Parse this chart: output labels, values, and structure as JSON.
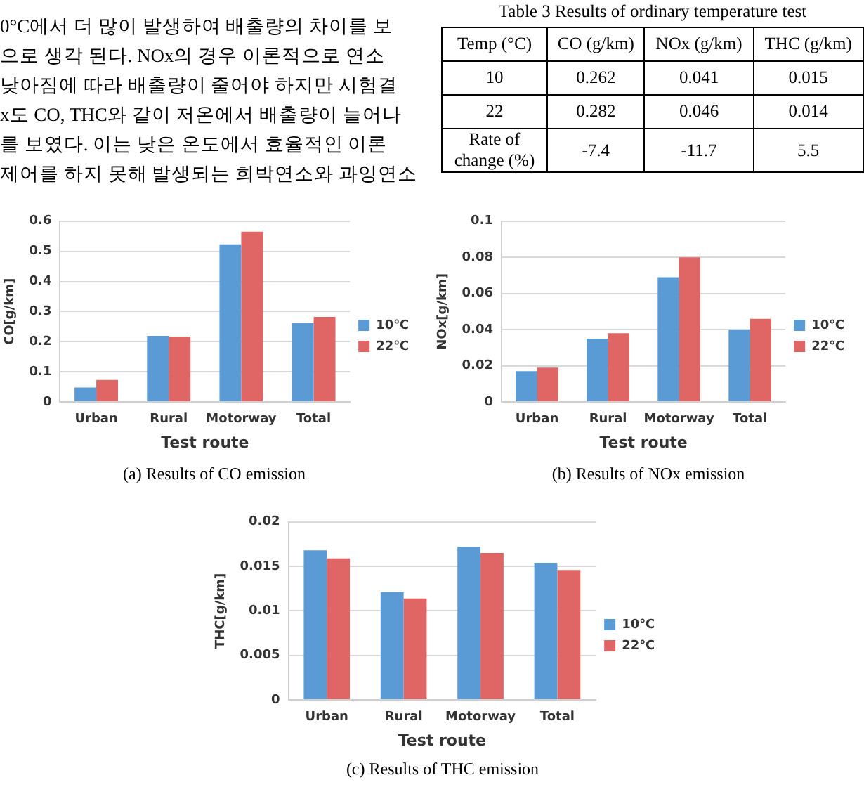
{
  "chart_data": [
    {
      "type": "other",
      "annotations": [
        "0°C에서 더 많이 발생하여 배출량의 차이를 보",
        "으로 생각 된다. NOx의 경우 이론적으로 연소",
        "낮아짐에 따라 배출량이 줄어야 하지만 시험결",
        "x도 CO, THC와 같이 저온에서 배출량이 늘어나",
        "를 보였다. 이는 낮은 온도에서 효율적인 이론",
        "제어를 하지 못해 발생되는 희박연소와 과잉연소"
      ]
    },
    {
      "type": "other",
      "title": "Table 3 Results of ordinary temperature test",
      "categories": [
        "Temp (°C)",
        "CO (g/km)",
        "NOx (g/km)",
        "THC (g/km)"
      ],
      "y_categories": [
        "10",
        "22",
        "Rate of change (%)"
      ],
      "cell_labels": [
        [
          "0.262",
          "0.041",
          "0.015"
        ],
        [
          "0.282",
          "0.046",
          "0.014"
        ],
        [
          "-7.4",
          "-11.7",
          "5.5"
        ]
      ]
    },
    {
      "type": "bar",
      "title": "(a)  Results  of  CO  emission",
      "xlabel": "Test route",
      "ylabel": "CO[g/km]",
      "categories": [
        "Urban",
        "Rural",
        "Motorway",
        "Total"
      ],
      "series": [
        {
          "name": "10℃",
          "color": "#5b9bd5",
          "values": [
            0.048,
            0.219,
            0.523,
            0.262
          ]
        },
        {
          "name": "22℃",
          "color": "#e06666",
          "values": [
            0.073,
            0.217,
            0.565,
            0.282
          ]
        }
      ],
      "ylim": [
        0,
        0.6
      ],
      "yticks": [
        0,
        0.1,
        0.2,
        0.3,
        0.4,
        0.5,
        0.6
      ],
      "grid": "y",
      "legend": "right"
    },
    {
      "type": "bar",
      "title": "(b)  Results  of  NOx  emission",
      "xlabel": "Test route",
      "ylabel": "NOx[g/km]",
      "categories": [
        "Urban",
        "Rural",
        "Motorway",
        "Total"
      ],
      "series": [
        {
          "name": "10℃",
          "color": "#5b9bd5",
          "values": [
            0.017,
            0.035,
            0.069,
            0.04
          ]
        },
        {
          "name": "22℃",
          "color": "#e06666",
          "values": [
            0.019,
            0.038,
            0.08,
            0.046
          ]
        }
      ],
      "ylim": [
        0,
        0.1
      ],
      "yticks": [
        0,
        0.02,
        0.04,
        0.06,
        0.08,
        0.1
      ],
      "grid": "y",
      "legend": "right"
    },
    {
      "type": "bar",
      "title": "(c)  Results  of  THC  emission",
      "xlabel": "Test route",
      "ylabel": "THC[g/km]",
      "categories": [
        "Urban",
        "Rural",
        "Motorway",
        "Total"
      ],
      "series": [
        {
          "name": "10℃",
          "color": "#5b9bd5",
          "values": [
            0.0168,
            0.0121,
            0.0172,
            0.0154
          ]
        },
        {
          "name": "22℃",
          "color": "#e06666",
          "values": [
            0.0159,
            0.0114,
            0.0165,
            0.0146
          ]
        }
      ],
      "ylim": [
        0,
        0.02
      ],
      "yticks": [
        0,
        0.005,
        0.01,
        0.015,
        0.02
      ],
      "grid": "y",
      "legend": "right"
    }
  ]
}
